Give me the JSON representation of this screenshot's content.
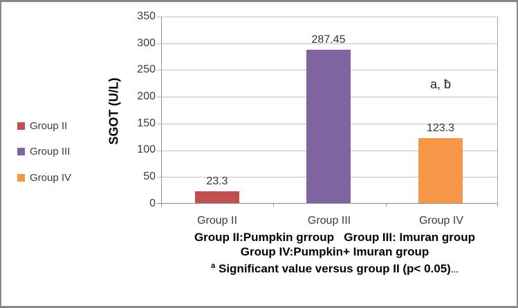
{
  "chart_data": {
    "type": "bar",
    "title": "",
    "categories": [
      "Group II",
      "Group III",
      "Group IV"
    ],
    "values": [
      23.3,
      287.45,
      123.3
    ],
    "value_labels": [
      "23.3",
      "287.45",
      "123.3"
    ],
    "colors": [
      "#c0504d",
      "#8064a2",
      "#f79646"
    ],
    "ylabel": "SGOT (U/L)",
    "xlabel": "",
    "ylim": [
      0,
      350
    ],
    "ytick_step": 50,
    "yticks_desc": [
      "350",
      "300",
      "250",
      "200",
      "150",
      "100",
      "50",
      "0"
    ],
    "grid": "horizontal",
    "legend_position": "left",
    "legend": [
      {
        "label": "Group II",
        "color": "#c0504d"
      },
      {
        "label": "Group III",
        "color": "#8064a2"
      },
      {
        "label": "Group IV",
        "color": "#f79646"
      }
    ],
    "annotation": "a, ƀ"
  },
  "caption": {
    "line1": "Group II:Pumpkin grroup   Group III: Imuran group",
    "line2": "Group IV:Pumpkin+ Imuran group",
    "line3_sup": "a",
    "line3_text": " Significant value versus group II (p< 0.05)",
    "line3_ellipsis": "…"
  }
}
